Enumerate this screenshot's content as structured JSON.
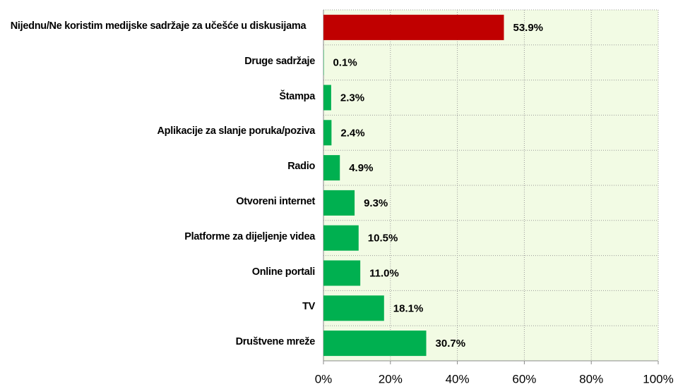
{
  "chart_data": {
    "type": "barh",
    "categories": [
      "Nijednu/Ne koristim medijske sadržaje za učešće u diskusijama",
      "Druge sadržaje",
      "Štampa",
      "Aplikacije za slanje poruka/poziva",
      "Radio",
      "Otvoreni internet",
      "Platforme za dijeljenje videa",
      "Online portali",
      "TV",
      "Društvene mreže"
    ],
    "values": [
      53.9,
      0.1,
      2.3,
      2.4,
      4.9,
      9.3,
      10.5,
      11.0,
      18.1,
      30.7
    ],
    "value_labels": [
      "53.9%",
      "0.1%",
      "2.3%",
      "2.4%",
      "4.9%",
      "9.3%",
      "10.5%",
      "11.0%",
      "18.1%",
      "30.7%"
    ],
    "colors": [
      "#c00000",
      "#00b050",
      "#00b050",
      "#00b050",
      "#00b050",
      "#00b050",
      "#00b050",
      "#00b050",
      "#00b050",
      "#00b050"
    ],
    "xlim": [
      0,
      100
    ],
    "xticks": [
      {
        "value": 0,
        "label": "0%"
      },
      {
        "value": 20,
        "label": "20%"
      },
      {
        "value": 40,
        "label": "40%"
      },
      {
        "value": 60,
        "label": "60%"
      },
      {
        "value": 80,
        "label": "80%"
      },
      {
        "value": 100,
        "label": "100%"
      }
    ],
    "grid": true
  }
}
